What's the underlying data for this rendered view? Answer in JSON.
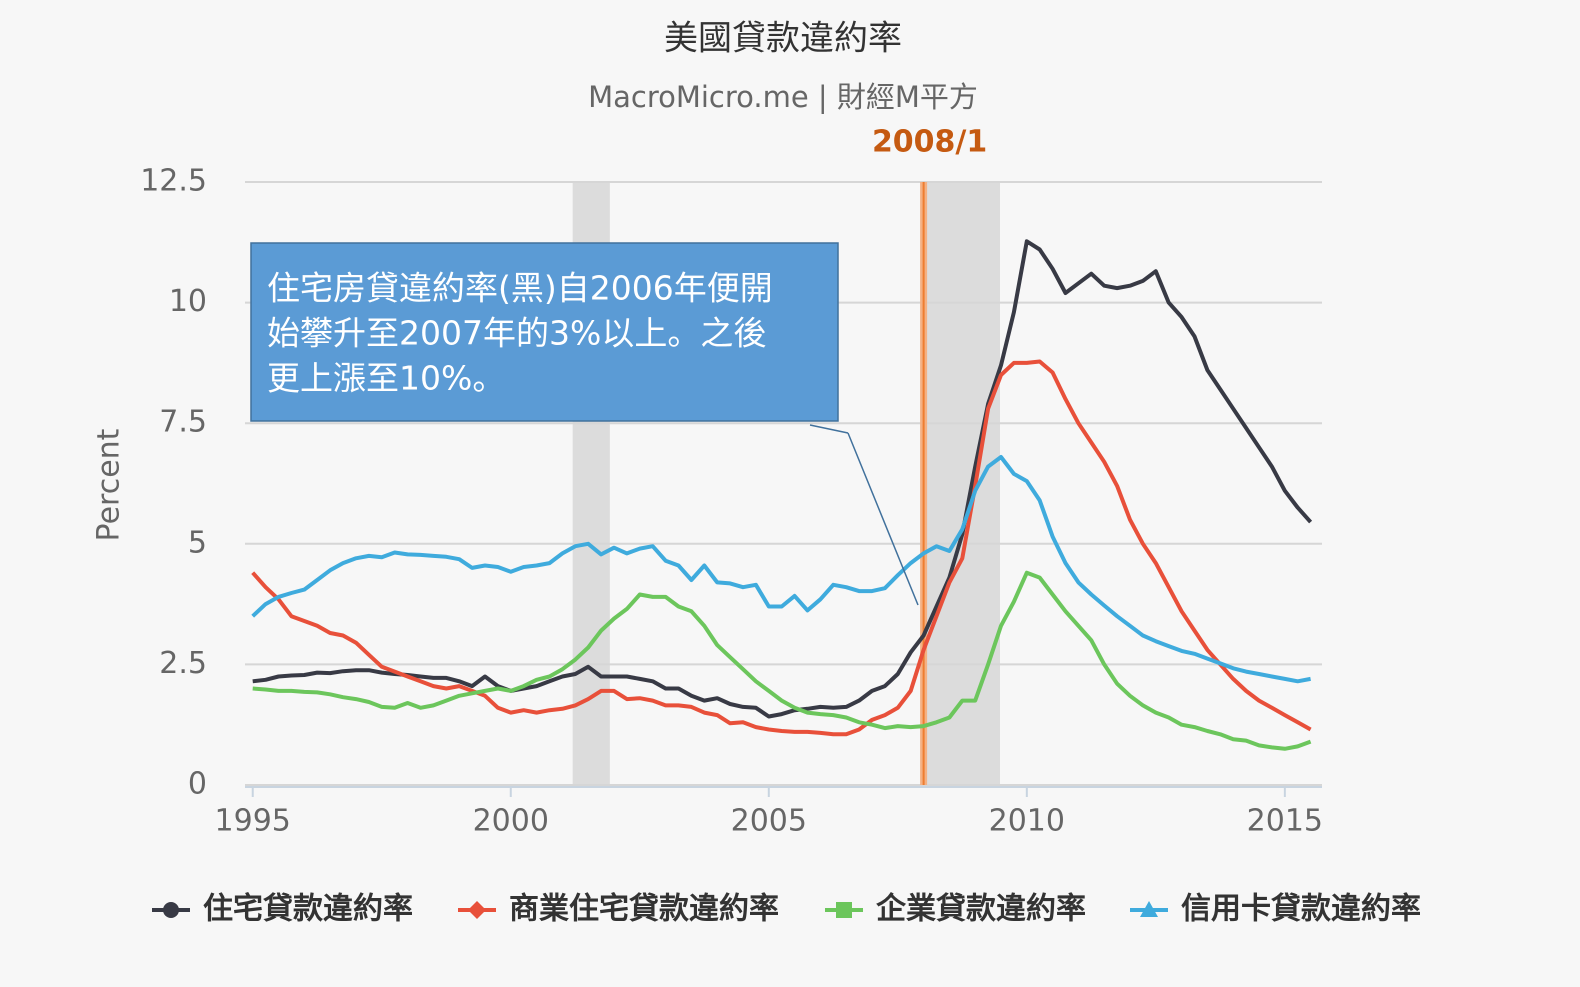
{
  "chart_data": {
    "type": "line",
    "title": "美國貸款違約率",
    "subtitle": "MacroMicro.me | 財經M平方",
    "ylabel": "Percent",
    "x": [
      1995,
      1995.25,
      1995.5,
      1995.75,
      1996,
      1996.25,
      1996.5,
      1996.75,
      1997,
      1997.25,
      1997.5,
      1997.75,
      1998,
      1998.25,
      1998.5,
      1998.75,
      1999,
      1999.25,
      1999.5,
      1999.75,
      2000,
      2000.25,
      2000.5,
      2000.75,
      2001,
      2001.25,
      2001.5,
      2001.75,
      2002,
      2002.25,
      2002.5,
      2002.75,
      2003,
      2003.25,
      2003.5,
      2003.75,
      2004,
      2004.25,
      2004.5,
      2004.75,
      2005,
      2005.25,
      2005.5,
      2005.75,
      2006,
      2006.25,
      2006.5,
      2006.75,
      2007,
      2007.25,
      2007.5,
      2007.75,
      2008,
      2008.25,
      2008.5,
      2008.75,
      2009,
      2009.25,
      2009.5,
      2009.75,
      2010,
      2010.25,
      2010.5,
      2010.75,
      2011,
      2011.25,
      2011.5,
      2011.75,
      2012,
      2012.25,
      2012.5,
      2012.75,
      2013,
      2013.25,
      2013.5,
      2013.75,
      2014,
      2014.25,
      2014.5,
      2014.75,
      2015,
      2015.25,
      2015.5
    ],
    "series": [
      {
        "name": "住宅貸款違約率",
        "color": "#383a45",
        "marker": "circle",
        "values": [
          2.15,
          2.18,
          2.25,
          2.27,
          2.28,
          2.33,
          2.32,
          2.36,
          2.38,
          2.38,
          2.33,
          2.3,
          2.28,
          2.25,
          2.22,
          2.22,
          2.15,
          2.05,
          2.25,
          2.05,
          1.95,
          2.0,
          2.05,
          2.15,
          2.25,
          2.3,
          2.45,
          2.25,
          2.25,
          2.25,
          2.2,
          2.15,
          2.0,
          2.0,
          1.85,
          1.75,
          1.8,
          1.68,
          1.62,
          1.6,
          1.42,
          1.47,
          1.55,
          1.58,
          1.62,
          1.6,
          1.62,
          1.75,
          1.95,
          2.05,
          2.3,
          2.75,
          3.1,
          3.7,
          4.3,
          5.2,
          6.6,
          7.9,
          8.7,
          9.8,
          11.27,
          11.1,
          10.7,
          10.2,
          10.4,
          10.6,
          10.35,
          10.3,
          10.35,
          10.45,
          10.65,
          10.0,
          9.7,
          9.3,
          8.6,
          8.2,
          7.8,
          7.4,
          7.0,
          6.6,
          6.1,
          5.75,
          5.45
        ]
      },
      {
        "name": "商業住宅貸款違約率",
        "color": "#e8503a",
        "marker": "diamond",
        "values": [
          4.4,
          4.1,
          3.85,
          3.5,
          3.4,
          3.3,
          3.15,
          3.1,
          2.95,
          2.7,
          2.45,
          2.35,
          2.25,
          2.15,
          2.05,
          2.0,
          2.05,
          1.95,
          1.85,
          1.6,
          1.5,
          1.55,
          1.5,
          1.55,
          1.58,
          1.65,
          1.78,
          1.95,
          1.95,
          1.78,
          1.8,
          1.75,
          1.65,
          1.65,
          1.62,
          1.5,
          1.45,
          1.28,
          1.3,
          1.2,
          1.15,
          1.12,
          1.1,
          1.1,
          1.08,
          1.05,
          1.05,
          1.15,
          1.35,
          1.45,
          1.6,
          1.95,
          2.8,
          3.5,
          4.2,
          4.7,
          6.2,
          7.8,
          8.5,
          8.75,
          8.75,
          8.78,
          8.55,
          8.0,
          7.5,
          7.1,
          6.7,
          6.2,
          5.5,
          5.0,
          4.6,
          4.1,
          3.6,
          3.2,
          2.8,
          2.5,
          2.2,
          1.95,
          1.75,
          1.6,
          1.45,
          1.3,
          1.15
        ]
      },
      {
        "name": "企業貸款違約率",
        "color": "#6cc65c",
        "marker": "square",
        "values": [
          2.0,
          1.98,
          1.95,
          1.95,
          1.93,
          1.92,
          1.88,
          1.82,
          1.78,
          1.72,
          1.62,
          1.6,
          1.7,
          1.6,
          1.65,
          1.75,
          1.85,
          1.9,
          1.95,
          2.0,
          1.95,
          2.05,
          2.18,
          2.25,
          2.4,
          2.6,
          2.85,
          3.2,
          3.45,
          3.65,
          3.95,
          3.9,
          3.9,
          3.7,
          3.6,
          3.3,
          2.9,
          2.65,
          2.4,
          2.15,
          1.95,
          1.75,
          1.6,
          1.5,
          1.47,
          1.45,
          1.4,
          1.3,
          1.25,
          1.18,
          1.22,
          1.2,
          1.22,
          1.3,
          1.4,
          1.75,
          1.75,
          2.5,
          3.3,
          3.8,
          4.4,
          4.3,
          3.95,
          3.6,
          3.3,
          3.0,
          2.5,
          2.1,
          1.85,
          1.65,
          1.5,
          1.4,
          1.25,
          1.2,
          1.12,
          1.05,
          0.95,
          0.92,
          0.82,
          0.78,
          0.75,
          0.8,
          0.9
        ]
      },
      {
        "name": "信用卡貸款違約率",
        "color": "#3fabdd",
        "marker": "triangle",
        "values": [
          3.5,
          3.75,
          3.9,
          3.98,
          4.05,
          4.25,
          4.45,
          4.6,
          4.7,
          4.75,
          4.72,
          4.82,
          4.78,
          4.77,
          4.75,
          4.73,
          4.68,
          4.5,
          4.55,
          4.52,
          4.42,
          4.52,
          4.55,
          4.6,
          4.8,
          4.95,
          5.0,
          4.78,
          4.92,
          4.8,
          4.9,
          4.95,
          4.65,
          4.55,
          4.25,
          4.55,
          4.2,
          4.18,
          4.1,
          4.15,
          3.7,
          3.7,
          3.92,
          3.62,
          3.85,
          4.15,
          4.1,
          4.02,
          4.02,
          4.08,
          4.35,
          4.6,
          4.8,
          4.95,
          4.85,
          5.3,
          6.1,
          6.6,
          6.8,
          6.45,
          6.3,
          5.9,
          5.15,
          4.6,
          4.2,
          3.95,
          3.72,
          3.5,
          3.3,
          3.1,
          2.98,
          2.88,
          2.78,
          2.72,
          2.62,
          2.52,
          2.42,
          2.35,
          2.3,
          2.25,
          2.2,
          2.15,
          2.2
        ]
      }
    ],
    "xlim": [
      1994.85,
      2015.72
    ],
    "xticks": [
      1995,
      2000,
      2005,
      2010,
      2015
    ],
    "ylim": [
      0,
      12.5
    ],
    "yticks": [
      0,
      2.5,
      5,
      7.5,
      10,
      12.5
    ],
    "grid": true,
    "legend": "bottom",
    "recessions": [
      [
        2001.2,
        2001.92
      ],
      [
        2008.06,
        2009.48
      ]
    ],
    "vline": {
      "x": 2008,
      "label": "2008/1"
    },
    "annotation": [
      "住宅房貸違約率(黑)自2006年便開",
      "始攀升至2007年的3%以上。之後",
      "更上漲至10%。"
    ]
  }
}
